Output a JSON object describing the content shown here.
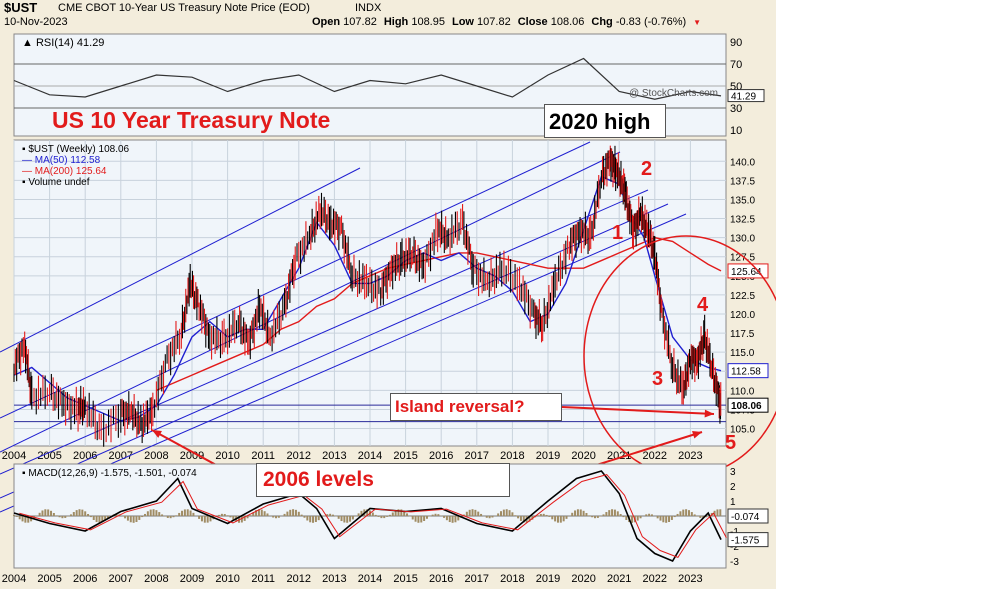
{
  "header": {
    "symbol": "$UST",
    "name": "CME CBOT 10-Year US Treasury Note Price (EOD)",
    "exchange": "INDX",
    "date": "10-Nov-2023",
    "watermark": "@ StockCharts.com",
    "ohlc": [
      {
        "label": "Open",
        "value": "107.82"
      },
      {
        "label": "High",
        "value": "108.95"
      },
      {
        "label": "Low",
        "value": "107.82"
      },
      {
        "label": "Close",
        "value": "108.06"
      },
      {
        "label": "Chg",
        "value": "-0.83 (-0.76%)"
      }
    ]
  },
  "annotations": {
    "title": "US 10 Year Treasury Note",
    "high_2020": "2020 high",
    "island": "Island reversal?",
    "levels_2006": "2006 levels",
    "waves": [
      "1",
      "2",
      "3",
      "4",
      "5"
    ]
  },
  "colors": {
    "background": "#f3eddc",
    "plot": "#f0f5fa",
    "red": "#e21b1b",
    "blue": "#1f1fd0",
    "price": "#000000"
  },
  "chart_data": [
    {
      "type": "line",
      "panel": "RSI",
      "legend": "RSI(14) 41.29",
      "current_label": "41.29",
      "y_ticks": [
        "90",
        "70",
        "50",
        "30",
        "10"
      ],
      "x": [
        2004,
        2005,
        2006,
        2007,
        2008,
        2009,
        2010,
        2011,
        2012,
        2013,
        2014,
        2015,
        2016,
        2017,
        2018,
        2019,
        2020,
        2021,
        2022,
        2023,
        2023.86
      ],
      "values": [
        55,
        42,
        40,
        50,
        60,
        58,
        45,
        55,
        60,
        45,
        55,
        52,
        60,
        50,
        40,
        60,
        75,
        45,
        38,
        45,
        41
      ]
    },
    {
      "type": "line",
      "panel": "price",
      "legend": [
        "$UST (Weekly) 108.06",
        "MA(50) 112.58",
        "MA(200) 125.64",
        "Volume undef"
      ],
      "y_ticks": [
        "140.0",
        "137.5",
        "135.0",
        "132.5",
        "130.0",
        "127.5",
        "125.0",
        "122.5",
        "120.0",
        "117.5",
        "115.0",
        "112.5",
        "110.0",
        "107.5",
        "105.0"
      ],
      "x_ticks": [
        "2004",
        "2005",
        "2006",
        "2007",
        "2008",
        "2009",
        "2010",
        "2011",
        "2012",
        "2013",
        "2014",
        "2015",
        "2016",
        "2017",
        "2018",
        "2019",
        "2020",
        "2021",
        "2022",
        "2023"
      ],
      "price_badges": [
        {
          "label": "125.64",
          "value": 125.64
        },
        {
          "label": "112.58",
          "value": 112.58
        },
        {
          "label": "108.06",
          "value": 108.06
        }
      ],
      "series": [
        {
          "name": "$UST (Weekly)",
          "color": "#000000",
          "x": [
            2004,
            2004.3,
            2004.5,
            2005,
            2005.4,
            2005.8,
            2006,
            2006.45,
            2007,
            2007.3,
            2007.6,
            2007.9,
            2008.3,
            2008.7,
            2008.95,
            2009.2,
            2009.5,
            2009.9,
            2010.3,
            2010.6,
            2010.9,
            2011.2,
            2011.6,
            2011.9,
            2012.3,
            2012.6,
            2012.9,
            2013.2,
            2013.5,
            2013.9,
            2014.3,
            2014.6,
            2014.9,
            2015.2,
            2015.5,
            2015.9,
            2016.2,
            2016.6,
            2016.9,
            2017.3,
            2017.7,
            2018.2,
            2018.6,
            2018.85,
            2019.2,
            2019.6,
            2019.9,
            2020.2,
            2020.5,
            2020.75,
            2020.9,
            2021.1,
            2021.2,
            2021.4,
            2021.6,
            2021.8,
            2022,
            2022.2,
            2022.5,
            2022.8,
            2023,
            2023.2,
            2023.4,
            2023.6,
            2023.8,
            2023.86
          ],
          "values": [
            113,
            116,
            109,
            110,
            108,
            107.5,
            108,
            104.5,
            107,
            107,
            105.5,
            107.5,
            114,
            117.5,
            124,
            121,
            117,
            116.5,
            119,
            116,
            121,
            117,
            121,
            127,
            130,
            133.5,
            132,
            131,
            125,
            124,
            123,
            126,
            127,
            128,
            126,
            131,
            130,
            132,
            126,
            124,
            126,
            124,
            120,
            118.5,
            124,
            129,
            131,
            130,
            138,
            140,
            139,
            137,
            135,
            131,
            133,
            131,
            128,
            120,
            113,
            110,
            114,
            114,
            117,
            113,
            109,
            108.06
          ]
        },
        {
          "name": "MA(50)",
          "color": "#1f1fd0",
          "x": [
            2004,
            2004.5,
            2005,
            2005.5,
            2006,
            2006.5,
            2007,
            2007.5,
            2008,
            2008.5,
            2009,
            2009.5,
            2010,
            2010.5,
            2011,
            2011.5,
            2012,
            2012.5,
            2013,
            2013.5,
            2014,
            2014.5,
            2015,
            2015.5,
            2016,
            2016.5,
            2017,
            2017.5,
            2018,
            2018.5,
            2019,
            2019.5,
            2020,
            2020.5,
            2021,
            2021.3,
            2021.7,
            2022,
            2022.5,
            2023,
            2023.5,
            2023.86
          ],
          "values": [
            112,
            113,
            111,
            109,
            108,
            107,
            106,
            106.5,
            108,
            112,
            117,
            119,
            117,
            118,
            118,
            122,
            126,
            132,
            129,
            124,
            124,
            125,
            127,
            128,
            127,
            128,
            126,
            125,
            123,
            119,
            120,
            124,
            131,
            138,
            137,
            133,
            130,
            125,
            117,
            114,
            113,
            112.58
          ]
        },
        {
          "name": "MA(200)",
          "color": "#e21b1b",
          "x": [
            2008,
            2008.5,
            2009,
            2009.5,
            2010,
            2010.5,
            2011,
            2011.5,
            2012,
            2012.5,
            2013,
            2013.5,
            2014,
            2014.5,
            2015,
            2015.5,
            2016,
            2016.5,
            2017,
            2017.5,
            2018,
            2018.5,
            2019,
            2019.5,
            2020,
            2020.5,
            2021,
            2021.5,
            2022,
            2022.5,
            2023,
            2023.5,
            2023.86
          ],
          "values": [
            110,
            111,
            112,
            113,
            114,
            115,
            116,
            118,
            119,
            121,
            122,
            124,
            125,
            126,
            126.5,
            127,
            127.5,
            128,
            128,
            127.5,
            127,
            126.5,
            126,
            126,
            126,
            127,
            128,
            129,
            130,
            129.5,
            128,
            126.5,
            125.64
          ]
        }
      ]
    },
    {
      "type": "line",
      "panel": "MACD",
      "legend": "MACD(12,26,9) -1.575, -1.501, -0.074",
      "y_ticks": [
        "3",
        "2",
        "1",
        "0",
        "-1",
        "-2",
        "-3"
      ],
      "badges": [
        "-0.074",
        "-1.575"
      ],
      "x_ticks": [
        "2004",
        "2005",
        "2006",
        "2007",
        "2008",
        "2009",
        "2010",
        "2011",
        "2012",
        "2013",
        "2014",
        "2015",
        "2016",
        "2017",
        "2018",
        "2019",
        "2020",
        "2021",
        "2022",
        "2023"
      ],
      "series": [
        {
          "name": "MACD",
          "x": [
            2004,
            2005,
            2006,
            2007,
            2008,
            2008.6,
            2009,
            2010,
            2011,
            2012,
            2012.5,
            2013,
            2014,
            2015,
            2016,
            2017,
            2018,
            2019,
            2019.8,
            2020.5,
            2021,
            2021.5,
            2022,
            2022.5,
            2023,
            2023.5,
            2023.86
          ],
          "values": [
            0.2,
            -0.5,
            -1,
            0.3,
            1,
            2.5,
            0.5,
            -0.5,
            0.8,
            1.5,
            0.5,
            -1.5,
            0.5,
            0.3,
            0.5,
            -0.5,
            -1,
            1,
            2.5,
            3,
            1.5,
            -1.5,
            -2.5,
            -3,
            -1,
            0.2,
            -1.575
          ]
        }
      ]
    }
  ]
}
